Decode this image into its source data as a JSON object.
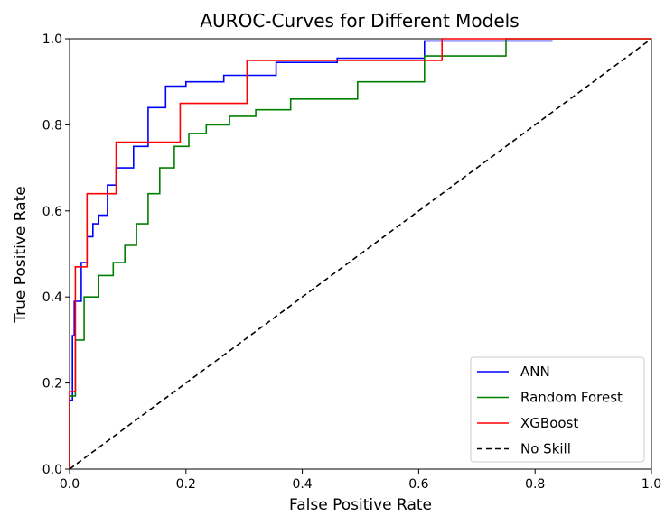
{
  "chart_data": {
    "type": "line",
    "title": "AUROC-Curves for Different Models",
    "xlabel": "False Positive Rate",
    "ylabel": "True Positive Rate",
    "xlim": [
      0.0,
      1.0
    ],
    "ylim": [
      0.0,
      1.0
    ],
    "xticks": [
      "0.0",
      "0.2",
      "0.4",
      "0.6",
      "0.8",
      "1.0"
    ],
    "yticks": [
      "0.0",
      "0.2",
      "0.4",
      "0.6",
      "0.8",
      "1.0"
    ],
    "grid": false,
    "legend_position": "lower-right",
    "series": [
      {
        "name": "ANN",
        "color": "#0000ff",
        "style": "solid",
        "points": [
          [
            0,
            0
          ],
          [
            0,
            0.16
          ],
          [
            0.005,
            0.16
          ],
          [
            0.005,
            0.31
          ],
          [
            0.008,
            0.31
          ],
          [
            0.008,
            0.39
          ],
          [
            0.02,
            0.39
          ],
          [
            0.02,
            0.48
          ],
          [
            0.03,
            0.48
          ],
          [
            0.03,
            0.54
          ],
          [
            0.04,
            0.54
          ],
          [
            0.04,
            0.57
          ],
          [
            0.05,
            0.57
          ],
          [
            0.05,
            0.59
          ],
          [
            0.065,
            0.59
          ],
          [
            0.065,
            0.66
          ],
          [
            0.08,
            0.66
          ],
          [
            0.08,
            0.7
          ],
          [
            0.11,
            0.7
          ],
          [
            0.11,
            0.75
          ],
          [
            0.135,
            0.75
          ],
          [
            0.135,
            0.84
          ],
          [
            0.165,
            0.84
          ],
          [
            0.165,
            0.89
          ],
          [
            0.2,
            0.89
          ],
          [
            0.2,
            0.9
          ],
          [
            0.265,
            0.9
          ],
          [
            0.265,
            0.915
          ],
          [
            0.355,
            0.915
          ],
          [
            0.355,
            0.945
          ],
          [
            0.46,
            0.945
          ],
          [
            0.46,
            0.955
          ],
          [
            0.61,
            0.955
          ],
          [
            0.61,
            0.995
          ],
          [
            0.83,
            0.995
          ]
        ]
      },
      {
        "name": "Random Forest",
        "color": "#008000",
        "style": "solid",
        "points": [
          [
            0,
            0
          ],
          [
            0,
            0.17
          ],
          [
            0.01,
            0.17
          ],
          [
            0.01,
            0.3
          ],
          [
            0.025,
            0.3
          ],
          [
            0.025,
            0.4
          ],
          [
            0.05,
            0.4
          ],
          [
            0.05,
            0.45
          ],
          [
            0.075,
            0.45
          ],
          [
            0.075,
            0.48
          ],
          [
            0.095,
            0.48
          ],
          [
            0.095,
            0.52
          ],
          [
            0.115,
            0.52
          ],
          [
            0.115,
            0.57
          ],
          [
            0.135,
            0.57
          ],
          [
            0.135,
            0.64
          ],
          [
            0.155,
            0.64
          ],
          [
            0.155,
            0.7
          ],
          [
            0.18,
            0.7
          ],
          [
            0.18,
            0.75
          ],
          [
            0.205,
            0.75
          ],
          [
            0.205,
            0.78
          ],
          [
            0.235,
            0.78
          ],
          [
            0.235,
            0.8
          ],
          [
            0.275,
            0.8
          ],
          [
            0.275,
            0.82
          ],
          [
            0.32,
            0.82
          ],
          [
            0.32,
            0.835
          ],
          [
            0.38,
            0.835
          ],
          [
            0.38,
            0.86
          ],
          [
            0.495,
            0.86
          ],
          [
            0.495,
            0.9
          ],
          [
            0.61,
            0.9
          ],
          [
            0.61,
            0.96
          ],
          [
            0.75,
            0.96
          ],
          [
            0.75,
            1.0
          ],
          [
            1.0,
            1.0
          ]
        ]
      },
      {
        "name": "XGBoost",
        "color": "#ff0000",
        "style": "solid",
        "points": [
          [
            0,
            0
          ],
          [
            0,
            0.18
          ],
          [
            0.01,
            0.18
          ],
          [
            0.01,
            0.47
          ],
          [
            0.03,
            0.47
          ],
          [
            0.03,
            0.64
          ],
          [
            0.08,
            0.64
          ],
          [
            0.08,
            0.76
          ],
          [
            0.19,
            0.76
          ],
          [
            0.19,
            0.85
          ],
          [
            0.305,
            0.85
          ],
          [
            0.305,
            0.95
          ],
          [
            0.64,
            0.95
          ],
          [
            0.64,
            1.0
          ],
          [
            1.0,
            1.0
          ]
        ]
      },
      {
        "name": "No Skill",
        "color": "#000000",
        "style": "dashed",
        "points": [
          [
            0,
            0
          ],
          [
            1,
            1
          ]
        ]
      }
    ]
  }
}
